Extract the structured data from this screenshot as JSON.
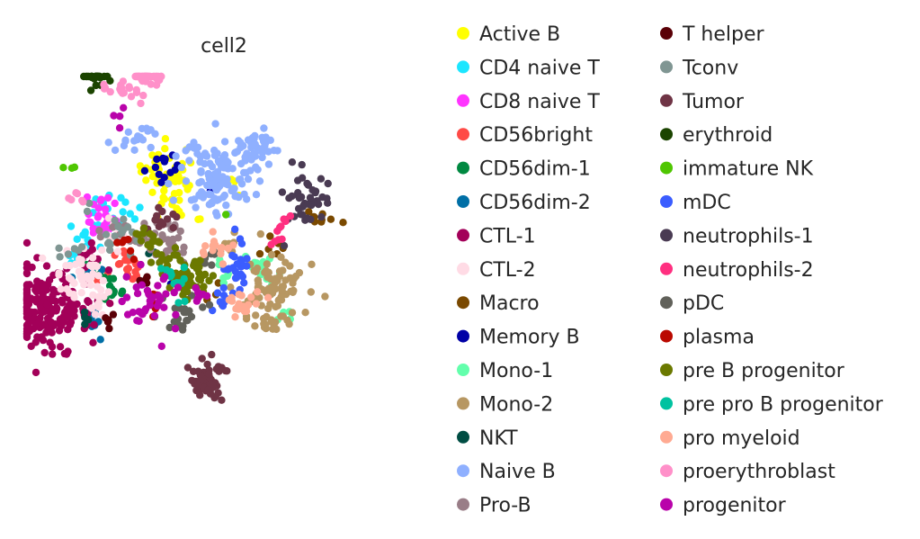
{
  "chart_data": {
    "type": "scatter",
    "title": "cell2",
    "xlabel": "",
    "ylabel": "",
    "grid": false,
    "axes_visible": false,
    "legend_position": "right",
    "legend_columns": 2,
    "series": [
      {
        "name": "Active B",
        "color": "#ffff00",
        "clusters": [
          [
            0.34,
            0.2,
            0.05,
            0.04,
            40
          ],
          [
            0.38,
            0.3,
            0.04,
            0.03,
            14
          ],
          [
            0.55,
            0.24,
            0.02,
            0.02,
            4
          ]
        ]
      },
      {
        "name": "CD4 naive T",
        "color": "#1ce6ff",
        "clusters": [
          [
            0.13,
            0.33,
            0.05,
            0.04,
            25
          ],
          [
            0.01,
            0.39,
            0.03,
            0.02,
            6
          ],
          [
            0.02,
            0.44,
            0.03,
            0.02,
            6
          ]
        ]
      },
      {
        "name": "CD8 naive T",
        "color": "#ff34ff",
        "clusters": [
          [
            0.11,
            0.32,
            0.03,
            0.03,
            18
          ],
          [
            0.09,
            0.38,
            0.02,
            0.02,
            6
          ]
        ]
      },
      {
        "name": "CD56bright",
        "color": "#ff4a46",
        "clusters": [
          [
            0.18,
            0.5,
            0.04,
            0.03,
            16
          ],
          [
            0.17,
            0.46,
            0.02,
            0.02,
            6
          ]
        ]
      },
      {
        "name": "CD56dim-1",
        "color": "#008941",
        "clusters": [
          [
            0.14,
            0.56,
            0.03,
            0.03,
            14
          ],
          [
            0.09,
            0.5,
            0.02,
            0.02,
            6
          ]
        ]
      },
      {
        "name": "CD56dim-2",
        "color": "#006fa6",
        "clusters": [
          [
            0.07,
            0.67,
            0.02,
            0.03,
            10
          ],
          [
            0.07,
            0.5,
            0.02,
            0.02,
            5
          ]
        ]
      },
      {
        "name": "CTL-1",
        "color": "#a30059",
        "clusters": [
          [
            -0.09,
            0.62,
            0.08,
            0.06,
            200
          ],
          [
            0.05,
            0.45,
            0.02,
            0.02,
            10
          ]
        ]
      },
      {
        "name": "CTL-2",
        "color": "#ffdbe5",
        "clusters": [
          [
            0.03,
            0.5,
            0.05,
            0.04,
            40
          ],
          [
            0.15,
            0.37,
            0.03,
            0.03,
            12
          ],
          [
            0.1,
            0.6,
            0.03,
            0.03,
            12
          ]
        ]
      },
      {
        "name": "Macro",
        "color": "#7a4900",
        "clusters": [
          [
            0.87,
            0.34,
            0.03,
            0.02,
            10
          ],
          [
            0.71,
            0.43,
            0.02,
            0.02,
            6
          ],
          [
            0.5,
            0.57,
            0.02,
            0.02,
            4
          ]
        ]
      },
      {
        "name": "Memory B",
        "color": "#0000a6",
        "clusters": [
          [
            0.32,
            0.2,
            0.03,
            0.03,
            14
          ],
          [
            0.33,
            0.53,
            0.01,
            0.01,
            1
          ],
          [
            0.48,
            0.24,
            0.01,
            0.01,
            1
          ]
        ]
      },
      {
        "name": "Mono-1",
        "color": "#63ffac",
        "clusters": [
          [
            0.67,
            0.5,
            0.04,
            0.02,
            16
          ],
          [
            0.54,
            0.51,
            0.02,
            0.02,
            6
          ],
          [
            0.73,
            0.64,
            0.02,
            0.02,
            4
          ]
        ]
      },
      {
        "name": "Mono-2",
        "color": "#b79762",
        "clusters": [
          [
            0.69,
            0.55,
            0.06,
            0.04,
            70
          ],
          [
            0.69,
            0.65,
            0.04,
            0.02,
            20
          ],
          [
            0.55,
            0.42,
            0.02,
            0.02,
            8
          ]
        ]
      },
      {
        "name": "NKT",
        "color": "#004d43",
        "clusters": [
          [
            0.05,
            0.65,
            0.02,
            0.02,
            4
          ],
          [
            0.27,
            0.45,
            0.01,
            0.01,
            2
          ]
        ]
      },
      {
        "name": "Naive B",
        "color": "#8fb0ff",
        "clusters": [
          [
            0.51,
            0.22,
            0.06,
            0.06,
            120
          ],
          [
            0.62,
            0.12,
            0.04,
            0.03,
            40
          ],
          [
            0.2,
            0.1,
            0.04,
            0.02,
            14
          ],
          [
            0.28,
            0.06,
            0.02,
            0.02,
            4
          ]
        ]
      },
      {
        "name": "Pro-B",
        "color": "#997d87",
        "clusters": [
          [
            0.3,
            0.4,
            0.04,
            0.03,
            30
          ],
          [
            0.36,
            0.45,
            0.02,
            0.02,
            8
          ],
          [
            0.16,
            0.37,
            0.03,
            0.02,
            10
          ]
        ]
      },
      {
        "name": "T helper",
        "color": "#5a0007",
        "clusters": [
          [
            0.12,
            0.66,
            0.02,
            0.02,
            6
          ],
          [
            0.25,
            0.53,
            0.02,
            0.01,
            4
          ],
          [
            0.44,
            0.48,
            0.01,
            0.01,
            1
          ]
        ]
      },
      {
        "name": "Tconv",
        "color": "#809693",
        "clusters": [
          [
            0.17,
            0.39,
            0.04,
            0.03,
            16
          ],
          [
            0.0,
            0.43,
            0.02,
            0.02,
            6
          ],
          [
            0.06,
            0.3,
            0.01,
            0.01,
            2
          ]
        ]
      },
      {
        "name": "Tumor",
        "color": "#6f3445",
        "clusters": [
          [
            0.47,
            0.84,
            0.03,
            0.03,
            60
          ],
          [
            0.32,
            0.35,
            0.03,
            0.02,
            12
          ]
        ]
      },
      {
        "name": "erythroid",
        "color": "#1b4400",
        "clusters": [
          [
            0.08,
            -0.12,
            0.02,
            0.03,
            30
          ]
        ]
      },
      {
        "name": "immature NK",
        "color": "#4fc601",
        "clusters": [
          [
            0.0,
            0.18,
            0.01,
            0.01,
            3
          ],
          [
            0.52,
            0.33,
            0.01,
            0.01,
            1
          ]
        ]
      },
      {
        "name": "mDC",
        "color": "#3b5dff",
        "clusters": [
          [
            0.58,
            0.5,
            0.03,
            0.04,
            24
          ],
          [
            0.52,
            0.58,
            0.02,
            0.02,
            8
          ]
        ]
      },
      {
        "name": "neutrophils-1",
        "color": "#4a3b53",
        "clusters": [
          [
            0.82,
            0.28,
            0.04,
            0.04,
            40
          ],
          [
            0.74,
            0.43,
            0.01,
            0.01,
            1
          ]
        ]
      },
      {
        "name": "neutrophils-2",
        "color": "#ff2f80",
        "clusters": [
          [
            0.72,
            0.38,
            0.02,
            0.02,
            8
          ],
          [
            0.75,
            0.33,
            0.01,
            0.01,
            3
          ]
        ]
      },
      {
        "name": "pDC",
        "color": "#61615a",
        "clusters": [
          [
            0.4,
            0.64,
            0.03,
            0.03,
            20
          ],
          [
            0.46,
            0.46,
            0.02,
            0.02,
            8
          ]
        ]
      },
      {
        "name": "plasma",
        "color": "#ba0900",
        "clusters": [
          [
            0.2,
            0.45,
            0.02,
            0.02,
            6
          ],
          [
            0.29,
            0.6,
            0.02,
            0.02,
            6
          ]
        ]
      },
      {
        "name": "pre B progenitor",
        "color": "#6b7900",
        "clusters": [
          [
            0.41,
            0.52,
            0.04,
            0.03,
            50
          ],
          [
            0.3,
            0.46,
            0.02,
            0.02,
            12
          ],
          [
            0.25,
            0.4,
            0.02,
            0.02,
            10
          ]
        ]
      },
      {
        "name": "pre pro B progenitor",
        "color": "#00c2a0",
        "clusters": [
          [
            0.35,
            0.52,
            0.02,
            0.02,
            12
          ],
          [
            0.38,
            0.6,
            0.01,
            0.01,
            2
          ]
        ]
      },
      {
        "name": "pro myeloid",
        "color": "#ffaa92",
        "clusters": [
          [
            0.6,
            0.6,
            0.03,
            0.02,
            22
          ],
          [
            0.49,
            0.43,
            0.03,
            0.02,
            14
          ]
        ]
      },
      {
        "name": "proerythroblast",
        "color": "#ff90c9",
        "clusters": [
          [
            0.26,
            -0.12,
            0.03,
            0.03,
            40
          ],
          [
            0.19,
            -0.06,
            0.03,
            0.02,
            16
          ],
          [
            0.02,
            0.27,
            0.02,
            0.02,
            6
          ]
        ]
      },
      {
        "name": "progenitor",
        "color": "#b903aa",
        "clusters": [
          [
            0.26,
            0.59,
            0.06,
            0.05,
            40
          ],
          [
            0.16,
            0.01,
            0.02,
            0.02,
            4
          ],
          [
            0.44,
            0.57,
            0.02,
            0.02,
            6
          ]
        ]
      }
    ]
  }
}
